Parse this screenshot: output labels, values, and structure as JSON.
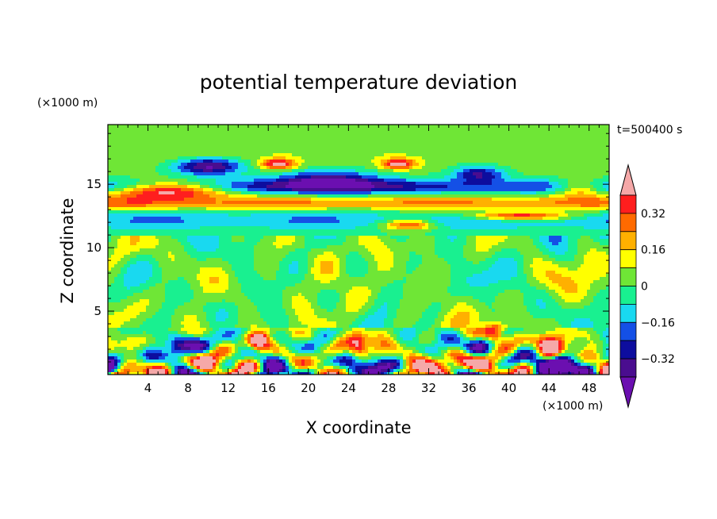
{
  "chart_data": {
    "type": "heatmap",
    "title": "potential temperature deviation",
    "xlabel": "X coordinate",
    "ylabel": "Z coordinate",
    "x_unit": "(×1000 m)",
    "y_unit": "(×1000 m)",
    "time_label": "t=500400 s",
    "xlim": [
      0,
      50
    ],
    "ylim": [
      0,
      19.7
    ],
    "x_ticks": [
      {
        "value": 4,
        "label": "4"
      },
      {
        "value": 8,
        "label": "8"
      },
      {
        "value": 12,
        "label": "12"
      },
      {
        "value": 16,
        "label": "16"
      },
      {
        "value": 20,
        "label": "20"
      },
      {
        "value": 24,
        "label": "24"
      },
      {
        "value": 28,
        "label": "28"
      },
      {
        "value": 32,
        "label": "32"
      },
      {
        "value": 36,
        "label": "36"
      },
      {
        "value": 40,
        "label": "40"
      },
      {
        "value": 44,
        "label": "44"
      },
      {
        "value": 48,
        "label": "48"
      }
    ],
    "y_ticks": [
      {
        "value": 5,
        "label": "5"
      },
      {
        "value": 10,
        "label": "10"
      },
      {
        "value": 15,
        "label": "15"
      }
    ],
    "colorbar": {
      "levels": [
        -0.48,
        -0.4,
        -0.32,
        -0.24,
        -0.16,
        -0.08,
        0,
        0.08,
        0.16,
        0.24,
        0.32,
        0.4
      ],
      "colors": [
        "#6b0fb0",
        "#4a0d8f",
        "#0d0d9e",
        "#1450e6",
        "#19d9f0",
        "#19f090",
        "#6fe636",
        "#ffff00",
        "#ffb000",
        "#ff6a00",
        "#ff1e1e",
        "#f5a8a8"
      ],
      "tick_labels": [
        {
          "value": -0.32,
          "label": "−0.32"
        },
        {
          "value": -0.16,
          "label": "−0.16"
        },
        {
          "value": 0,
          "label": "0"
        },
        {
          "value": 0.16,
          "label": "0.16"
        },
        {
          "value": 0.32,
          "label": "0.32"
        }
      ]
    },
    "field_features": [
      {
        "kind": "band",
        "z_center": 12.2,
        "z_half_width": 0.9,
        "value": -0.2
      },
      {
        "kind": "band",
        "z_center": 13.5,
        "z_half_width": 0.6,
        "value": 0.28
      },
      {
        "kind": "band",
        "z_center": 14.8,
        "z_half_width": 0.6,
        "value": -0.3
      },
      {
        "kind": "band",
        "z_center": 17.5,
        "z_half_width": 1.2,
        "value": 0.06
      },
      {
        "kind": "blob",
        "x": 6,
        "z": 14.5,
        "rx": 7,
        "rz": 0.8,
        "value": 0.5
      },
      {
        "kind": "blob",
        "x": 10,
        "z": 16.4,
        "rx": 4,
        "rz": 0.8,
        "value": -0.45
      },
      {
        "kind": "blob",
        "x": 17,
        "z": 16.6,
        "rx": 2,
        "rz": 0.5,
        "value": 0.45
      },
      {
        "kind": "blob",
        "x": 22,
        "z": 15.2,
        "rx": 6,
        "rz": 1.0,
        "value": -0.42
      },
      {
        "kind": "blob",
        "x": 29,
        "z": 16.6,
        "rx": 2,
        "rz": 0.5,
        "value": 0.45
      },
      {
        "kind": "blob",
        "x": 37,
        "z": 15.8,
        "rx": 3,
        "rz": 0.8,
        "value": -0.35
      },
      {
        "kind": "blob",
        "x": 41,
        "z": 12.5,
        "rx": 6,
        "rz": 0.4,
        "value": 0.45
      },
      {
        "kind": "blob",
        "x": 30,
        "z": 11.8,
        "rx": 3,
        "rz": 0.5,
        "value": 0.4
      },
      {
        "kind": "blob",
        "x": 47,
        "z": 14.7,
        "rx": 3,
        "rz": 0.8,
        "value": 0.35
      },
      {
        "kind": "blob",
        "x": 38.5,
        "z": 3.2,
        "rx": 1.2,
        "rz": 0.9,
        "value": 0.5
      },
      {
        "kind": "blob",
        "x": 25,
        "z": 2.0,
        "rx": 1.2,
        "rz": 1.2,
        "value": 0.38
      },
      {
        "kind": "blob",
        "x": 15,
        "z": 2.6,
        "rx": 1.2,
        "rz": 1.0,
        "value": 0.36
      },
      {
        "kind": "blob",
        "x": 7,
        "z": 2.0,
        "rx": 1.5,
        "rz": 1.0,
        "value": -0.4
      },
      {
        "kind": "blob",
        "x": 44,
        "z": 1.5,
        "rx": 1.2,
        "rz": 1.0,
        "value": 0.34
      }
    ]
  }
}
